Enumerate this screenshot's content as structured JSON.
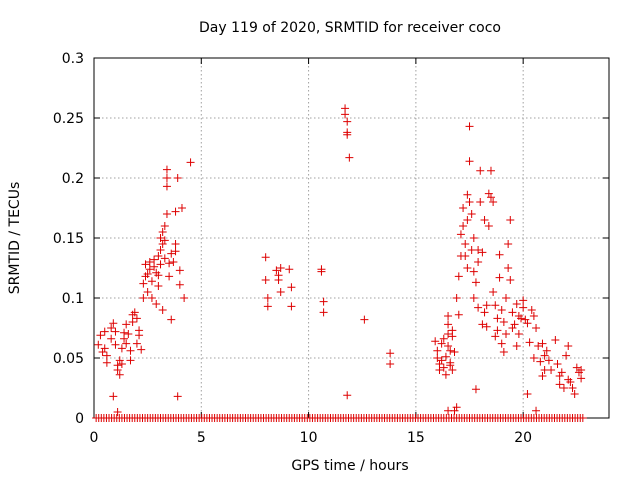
{
  "chart_data": {
    "type": "scatter",
    "title": "Day 119 of 2020, SRMTID for receiver coco",
    "xlabel": "GPS time / hours",
    "ylabel": "SRMTID / TECUs",
    "xlim": [
      0,
      24
    ],
    "ylim": [
      0,
      0.3
    ],
    "x_ticks": [
      0,
      5,
      10,
      15,
      20
    ],
    "x_tick_labels": [
      "0",
      "5",
      "10",
      "15",
      "20"
    ],
    "y_ticks": [
      0,
      0.05,
      0.1,
      0.15,
      0.2,
      0.25,
      0.3
    ],
    "y_tick_labels": [
      "0",
      "0.05",
      "0.1",
      "0.15",
      "0.2",
      "0.25",
      "0.3"
    ],
    "grid": true,
    "marker": "plus",
    "color": "#dd0000",
    "baseline_zero": {
      "x_start": 0.1,
      "x_end": 22.8,
      "step": 0.12,
      "y": 0
    },
    "series": [
      {
        "name": "SRMTID",
        "points": [
          [
            0.2,
            0.061
          ],
          [
            0.3,
            0.069
          ],
          [
            0.4,
            0.055
          ],
          [
            0.5,
            0.058
          ],
          [
            0.5,
            0.072
          ],
          [
            0.6,
            0.052
          ],
          [
            0.6,
            0.046
          ],
          [
            0.8,
            0.066
          ],
          [
            0.8,
            0.075
          ],
          [
            0.9,
            0.018
          ],
          [
            0.9,
            0.079
          ],
          [
            1.0,
            0.061
          ],
          [
            1.0,
            0.072
          ],
          [
            1.1,
            0.044
          ],
          [
            1.1,
            0.04
          ],
          [
            1.2,
            0.036
          ],
          [
            1.2,
            0.048
          ],
          [
            1.3,
            0.058
          ],
          [
            1.3,
            0.045
          ],
          [
            1.4,
            0.066
          ],
          [
            1.4,
            0.071
          ],
          [
            1.5,
            0.078
          ],
          [
            1.5,
            0.062
          ],
          [
            1.6,
            0.07
          ],
          [
            1.7,
            0.056
          ],
          [
            1.7,
            0.048
          ],
          [
            1.8,
            0.08
          ],
          [
            1.8,
            0.086
          ],
          [
            1.9,
            0.088
          ],
          [
            2.0,
            0.083
          ],
          [
            2.0,
            0.062
          ],
          [
            2.1,
            0.073
          ],
          [
            2.1,
            0.069
          ],
          [
            2.2,
            0.057
          ],
          [
            2.3,
            0.1
          ],
          [
            2.3,
            0.112
          ],
          [
            2.4,
            0.118
          ],
          [
            2.4,
            0.128
          ],
          [
            2.5,
            0.12
          ],
          [
            2.5,
            0.105
          ],
          [
            2.6,
            0.124
          ],
          [
            2.6,
            0.13
          ],
          [
            2.7,
            0.114
          ],
          [
            2.7,
            0.1
          ],
          [
            2.8,
            0.132
          ],
          [
            2.8,
            0.126
          ],
          [
            2.9,
            0.121
          ],
          [
            2.9,
            0.095
          ],
          [
            3.0,
            0.135
          ],
          [
            3.0,
            0.119
          ],
          [
            3.0,
            0.11
          ],
          [
            3.1,
            0.14
          ],
          [
            3.1,
            0.128
          ],
          [
            3.1,
            0.15
          ],
          [
            3.2,
            0.155
          ],
          [
            3.2,
            0.145
          ],
          [
            3.2,
            0.09
          ],
          [
            3.3,
            0.16
          ],
          [
            3.3,
            0.148
          ],
          [
            3.3,
            0.133
          ],
          [
            3.4,
            0.17
          ],
          [
            3.4,
            0.2
          ],
          [
            3.4,
            0.207
          ],
          [
            3.4,
            0.193
          ],
          [
            3.5,
            0.129
          ],
          [
            3.5,
            0.118
          ],
          [
            3.6,
            0.082
          ],
          [
            3.6,
            0.137
          ],
          [
            3.7,
            0.13
          ],
          [
            3.8,
            0.145
          ],
          [
            3.8,
            0.172
          ],
          [
            3.8,
            0.139
          ],
          [
            3.9,
            0.018
          ],
          [
            3.9,
            0.2
          ],
          [
            4.0,
            0.123
          ],
          [
            4.0,
            0.111
          ],
          [
            4.1,
            0.175
          ],
          [
            4.2,
            0.1
          ],
          [
            4.5,
            0.213
          ],
          [
            8.0,
            0.134
          ],
          [
            8.0,
            0.115
          ],
          [
            8.1,
            0.1
          ],
          [
            8.1,
            0.093
          ],
          [
            8.5,
            0.123
          ],
          [
            8.6,
            0.119
          ],
          [
            8.6,
            0.115
          ],
          [
            8.7,
            0.105
          ],
          [
            8.7,
            0.125
          ],
          [
            9.1,
            0.124
          ],
          [
            9.2,
            0.093
          ],
          [
            9.2,
            0.109
          ],
          [
            10.6,
            0.124
          ],
          [
            10.6,
            0.122
          ],
          [
            10.7,
            0.088
          ],
          [
            10.7,
            0.097
          ],
          [
            11.7,
            0.258
          ],
          [
            11.7,
            0.253
          ],
          [
            11.8,
            0.247
          ],
          [
            11.8,
            0.238
          ],
          [
            11.8,
            0.236
          ],
          [
            11.9,
            0.217
          ],
          [
            11.8,
            0.019
          ],
          [
            12.6,
            0.082
          ],
          [
            13.8,
            0.054
          ],
          [
            13.8,
            0.045
          ],
          [
            15.9,
            0.064
          ],
          [
            16.0,
            0.056
          ],
          [
            16.0,
            0.05
          ],
          [
            16.1,
            0.045
          ],
          [
            16.1,
            0.04
          ],
          [
            16.2,
            0.062
          ],
          [
            16.2,
            0.048
          ],
          [
            16.3,
            0.066
          ],
          [
            16.3,
            0.042
          ],
          [
            16.4,
            0.051
          ],
          [
            16.4,
            0.036
          ],
          [
            16.5,
            0.085
          ],
          [
            16.5,
            0.078
          ],
          [
            16.5,
            0.07
          ],
          [
            16.5,
            0.06
          ],
          [
            16.6,
            0.056
          ],
          [
            16.6,
            0.046
          ],
          [
            16.6,
            0.044
          ],
          [
            16.7,
            0.073
          ],
          [
            16.7,
            0.068
          ],
          [
            16.7,
            0.04
          ],
          [
            16.8,
            0.055
          ],
          [
            16.8,
            0.006
          ],
          [
            16.9,
            0.1
          ],
          [
            17.0,
            0.118
          ],
          [
            17.0,
            0.086
          ],
          [
            17.1,
            0.135
          ],
          [
            17.1,
            0.153
          ],
          [
            17.2,
            0.16
          ],
          [
            17.2,
            0.175
          ],
          [
            17.3,
            0.145
          ],
          [
            17.3,
            0.135
          ],
          [
            17.4,
            0.186
          ],
          [
            17.4,
            0.165
          ],
          [
            17.4,
            0.125
          ],
          [
            17.5,
            0.243
          ],
          [
            17.5,
            0.214
          ],
          [
            17.5,
            0.18
          ],
          [
            17.6,
            0.17
          ],
          [
            17.6,
            0.14
          ],
          [
            17.7,
            0.15
          ],
          [
            17.7,
            0.122
          ],
          [
            17.7,
            0.1
          ],
          [
            17.8,
            0.113
          ],
          [
            17.8,
            0.024
          ],
          [
            17.9,
            0.14
          ],
          [
            17.9,
            0.13
          ],
          [
            17.9,
            0.092
          ],
          [
            18.0,
            0.206
          ],
          [
            18.0,
            0.18
          ],
          [
            18.1,
            0.138
          ],
          [
            18.1,
            0.078
          ],
          [
            18.2,
            0.165
          ],
          [
            18.2,
            0.088
          ],
          [
            18.3,
            0.094
          ],
          [
            18.3,
            0.076
          ],
          [
            18.4,
            0.187
          ],
          [
            18.4,
            0.16
          ],
          [
            18.5,
            0.206
          ],
          [
            18.5,
            0.184
          ],
          [
            18.6,
            0.18
          ],
          [
            18.6,
            0.105
          ],
          [
            18.7,
            0.094
          ],
          [
            18.7,
            0.068
          ],
          [
            18.8,
            0.083
          ],
          [
            18.8,
            0.073
          ],
          [
            18.9,
            0.136
          ],
          [
            18.9,
            0.117
          ],
          [
            19.0,
            0.062
          ],
          [
            19.0,
            0.09
          ],
          [
            19.1,
            0.08
          ],
          [
            19.1,
            0.055
          ],
          [
            19.2,
            0.1
          ],
          [
            19.2,
            0.07
          ],
          [
            19.3,
            0.145
          ],
          [
            19.3,
            0.125
          ],
          [
            19.4,
            0.165
          ],
          [
            19.4,
            0.115
          ],
          [
            19.5,
            0.088
          ],
          [
            19.5,
            0.075
          ],
          [
            19.6,
            0.078
          ],
          [
            19.7,
            0.095
          ],
          [
            19.7,
            0.06
          ],
          [
            19.8,
            0.085
          ],
          [
            19.8,
            0.07
          ],
          [
            19.9,
            0.083
          ],
          [
            20.0,
            0.098
          ],
          [
            20.0,
            0.092
          ],
          [
            20.1,
            0.082
          ],
          [
            20.2,
            0.079
          ],
          [
            20.3,
            0.063
          ],
          [
            20.4,
            0.09
          ],
          [
            20.5,
            0.085
          ],
          [
            20.5,
            0.05
          ],
          [
            20.6,
            0.075
          ],
          [
            20.7,
            0.06
          ],
          [
            20.8,
            0.047
          ],
          [
            20.9,
            0.062
          ],
          [
            20.9,
            0.035
          ],
          [
            21.0,
            0.052
          ],
          [
            21.0,
            0.04
          ],
          [
            21.1,
            0.056
          ],
          [
            21.2,
            0.048
          ],
          [
            21.3,
            0.04
          ],
          [
            21.5,
            0.065
          ],
          [
            21.6,
            0.045
          ],
          [
            21.7,
            0.035
          ],
          [
            21.7,
            0.028
          ],
          [
            21.8,
            0.038
          ],
          [
            21.9,
            0.025
          ],
          [
            22.0,
            0.052
          ],
          [
            22.1,
            0.06
          ],
          [
            22.1,
            0.032
          ],
          [
            22.2,
            0.03
          ],
          [
            22.3,
            0.025
          ],
          [
            22.4,
            0.02
          ],
          [
            22.5,
            0.042
          ],
          [
            22.6,
            0.038
          ],
          [
            22.7,
            0.033
          ],
          [
            22.7,
            0.04
          ],
          [
            1.1,
            0.005
          ],
          [
            16.5,
            0.006
          ],
          [
            16.9,
            0.009
          ],
          [
            20.2,
            0.02
          ],
          [
            20.6,
            0.006
          ]
        ]
      }
    ]
  }
}
